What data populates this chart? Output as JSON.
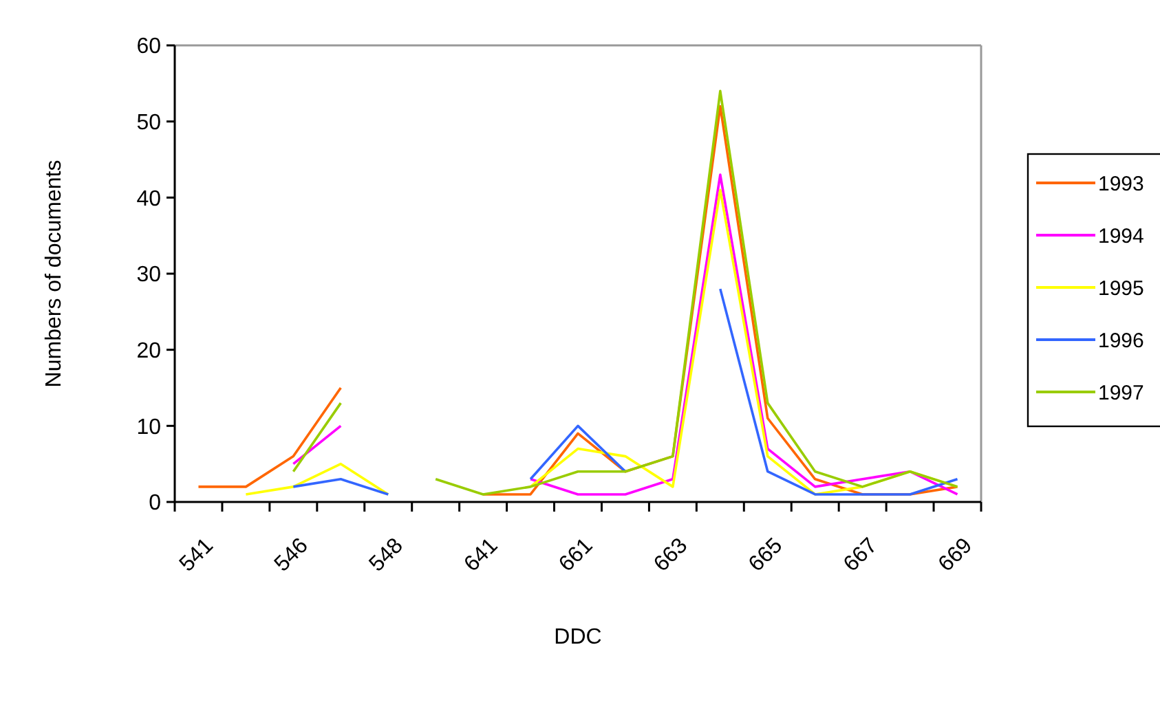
{
  "chart_data": {
    "type": "line",
    "xlabel": "DDC",
    "ylabel": "Numbers of documents",
    "categories": [
      "541",
      null,
      "546",
      null,
      "548",
      null,
      "641",
      null,
      "661",
      null,
      "663",
      null,
      "665",
      null,
      "667",
      null,
      "669"
    ],
    "series": [
      {
        "name": "1993",
        "color": "#ff6600",
        "values": [
          2,
          2,
          6,
          15,
          null,
          null,
          1,
          1,
          9,
          4,
          6,
          52,
          11,
          3,
          1,
          1,
          2
        ]
      },
      {
        "name": "1994",
        "color": "#ff00ff",
        "values": [
          null,
          null,
          5,
          10,
          null,
          null,
          null,
          3,
          1,
          1,
          3,
          43,
          7,
          2,
          3,
          4,
          1
        ]
      },
      {
        "name": "1995",
        "color": "#ffff00",
        "values": [
          null,
          1,
          2,
          5,
          1,
          null,
          null,
          2,
          7,
          6,
          2,
          41,
          6,
          1,
          2,
          4,
          2
        ]
      },
      {
        "name": "1996",
        "color": "#3366ff",
        "values": [
          null,
          null,
          2,
          3,
          1,
          null,
          null,
          3,
          10,
          4,
          null,
          28,
          4,
          1,
          1,
          1,
          3
        ]
      },
      {
        "name": "1997",
        "color": "#99cc00",
        "values": [
          null,
          null,
          4,
          13,
          null,
          3,
          1,
          2,
          4,
          4,
          6,
          54,
          13,
          4,
          2,
          4,
          2
        ]
      }
    ],
    "ylim": [
      0,
      60
    ],
    "yticks": [
      0,
      10,
      20,
      30,
      40,
      50,
      60
    ],
    "legend": "right",
    "marker": "none",
    "line_style": "solid"
  }
}
